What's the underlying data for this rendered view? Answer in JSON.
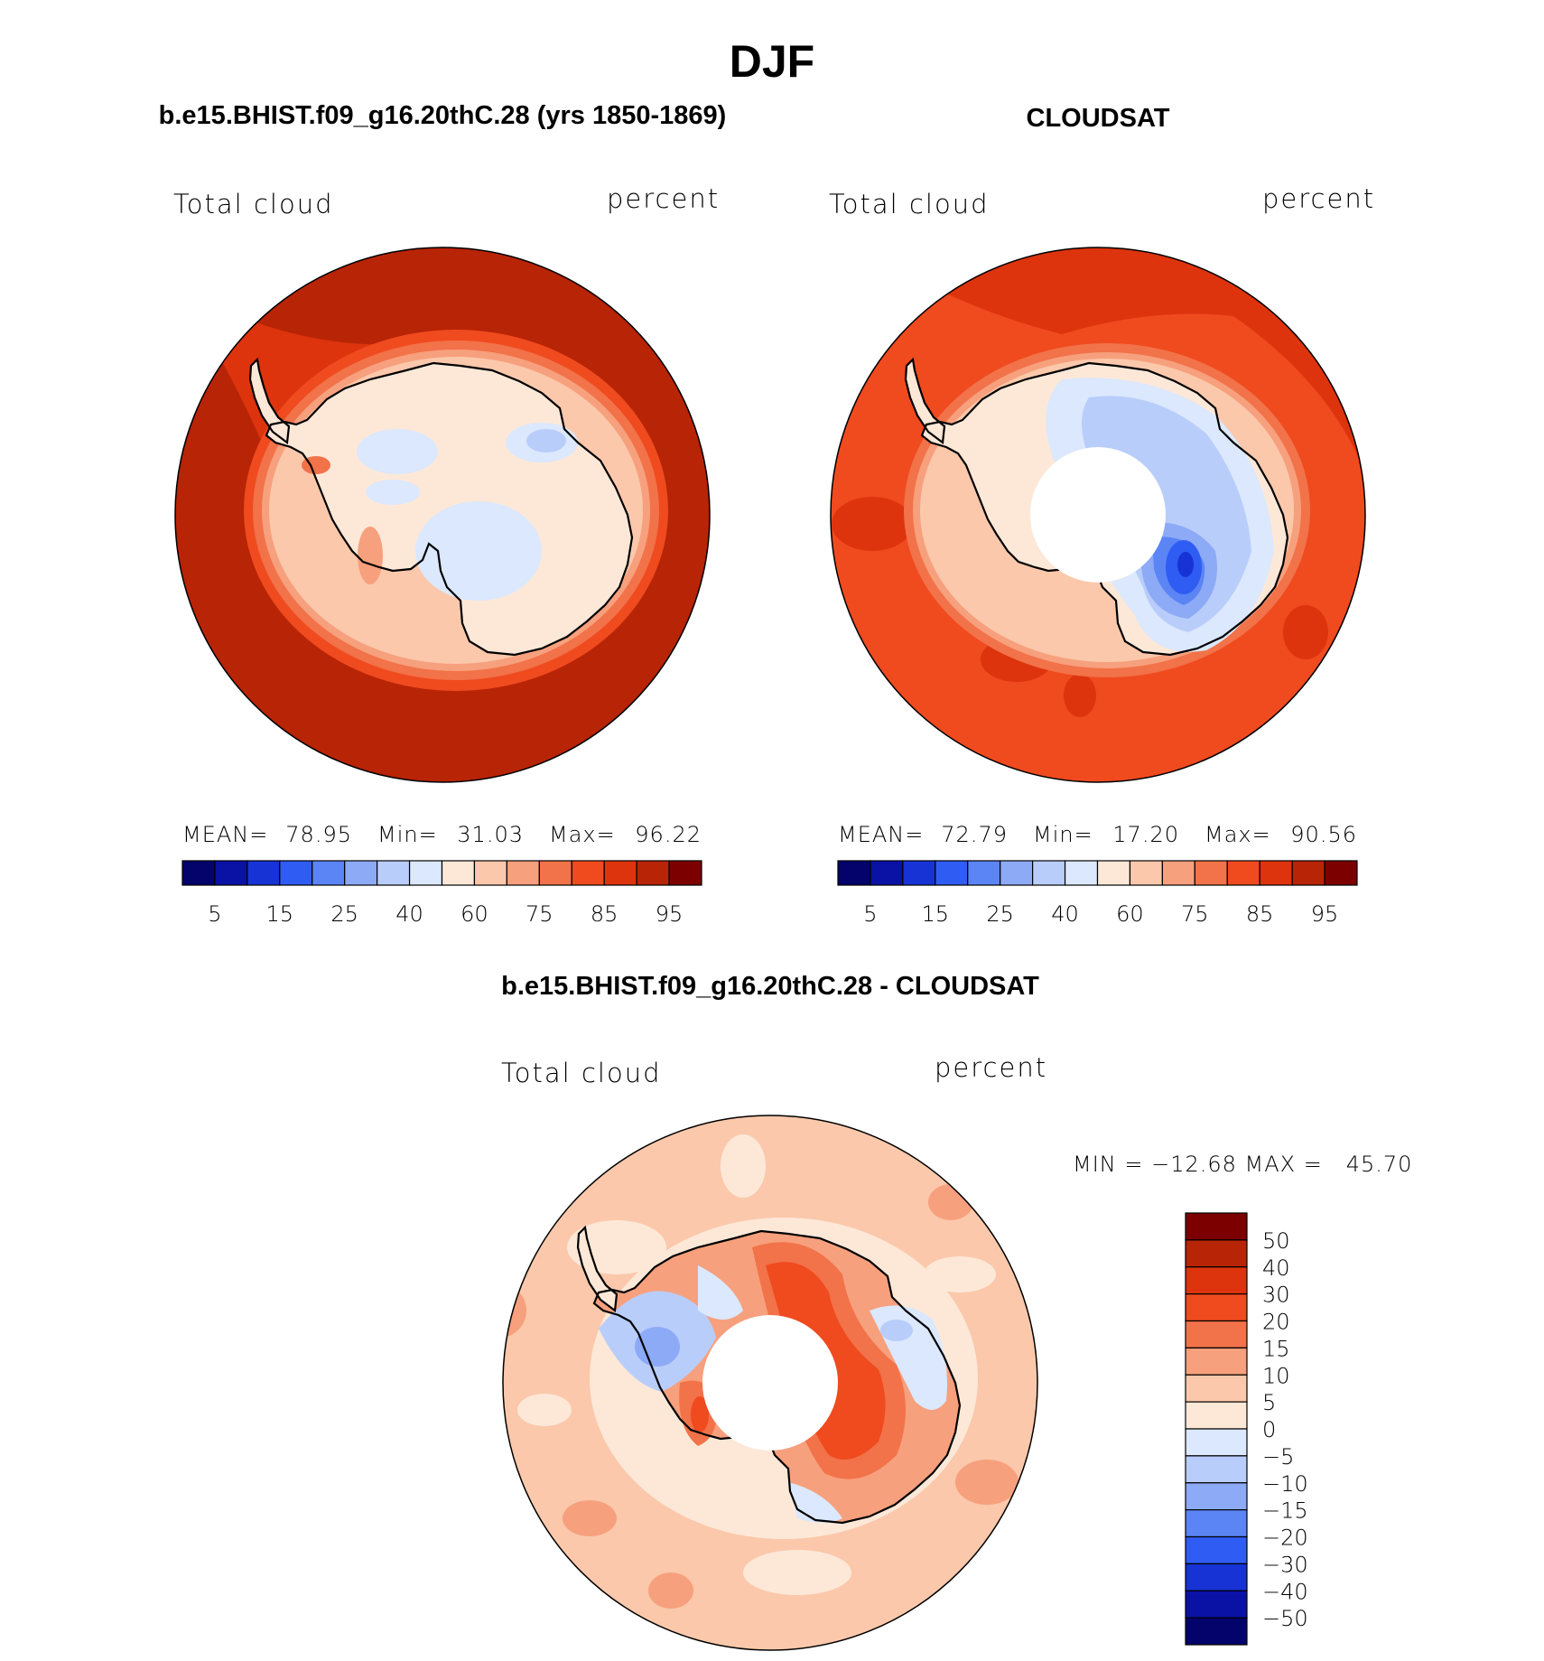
{
  "page": {
    "main_title": "DJF"
  },
  "panels": [
    {
      "id": "model",
      "title": "b.e15.BHIST.f09_g16.20thC.28 (yrs 1850-1869)",
      "variable": "Total cloud",
      "units": "percent",
      "stats": {
        "mean_label": "MEAN=",
        "mean": "78.95",
        "min_label": "Min=",
        "min": "31.03",
        "max_label": "Max=",
        "max": "96.22"
      },
      "colorbar": {
        "colors": [
          "#03036b",
          "#0a12a6",
          "#1733d6",
          "#2f5cf2",
          "#5b84f5",
          "#8daaf7",
          "#b9cdfb",
          "#dbe8fd",
          "#fde8d8",
          "#fbc8ab",
          "#f7a07d",
          "#f27249",
          "#f04a1f",
          "#dd340e",
          "#b82406",
          "#7d0000"
        ],
        "tick_labels": [
          "5",
          "15",
          "25",
          "40",
          "60",
          "75",
          "85",
          "95"
        ]
      }
    },
    {
      "id": "obs",
      "title": "CLOUDSAT",
      "variable": "Total cloud",
      "units": "percent",
      "stats": {
        "mean_label": "MEAN=",
        "mean": "72.79",
        "min_label": "Min=",
        "min": "17.20",
        "max_label": "Max=",
        "max": "90.56"
      },
      "colorbar": {
        "colors": [
          "#03036b",
          "#0a12a6",
          "#1733d6",
          "#2f5cf2",
          "#5b84f5",
          "#8daaf7",
          "#b9cdfb",
          "#dbe8fd",
          "#fde8d8",
          "#fbc8ab",
          "#f7a07d",
          "#f27249",
          "#f04a1f",
          "#dd340e",
          "#b82406",
          "#7d0000"
        ],
        "tick_labels": [
          "5",
          "15",
          "25",
          "40",
          "60",
          "75",
          "85",
          "95"
        ]
      }
    },
    {
      "id": "diff",
      "title": "b.e15.BHIST.f09_g16.20thC.28 - CLOUDSAT",
      "variable": "Total cloud",
      "units": "percent",
      "stats_line": "MIN = −12.68 MAX =   45.70",
      "colorbar": {
        "colors": [
          "#03036b",
          "#0a12a6",
          "#1733d6",
          "#2f5cf2",
          "#5b84f5",
          "#8daaf7",
          "#b9cdfb",
          "#dbe8fd",
          "#fde8d8",
          "#fbc8ab",
          "#f7a07d",
          "#f27249",
          "#f04a1f",
          "#dd340e",
          "#b82406",
          "#7d0000"
        ],
        "tick_labels": [
          "50",
          "40",
          "30",
          "20",
          "15",
          "10",
          "5",
          "0",
          "−5",
          "−10",
          "−15",
          "−20",
          "−30",
          "−40",
          "−50"
        ]
      }
    }
  ]
}
